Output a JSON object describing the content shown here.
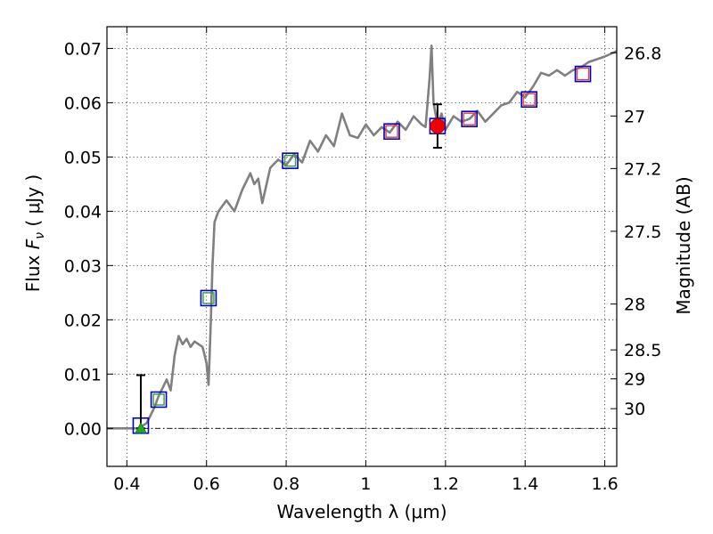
{
  "chart_data": {
    "type": "scatter",
    "xlabel": "Wavelength  λ (μm)",
    "ylabel_prefix": "Flux ",
    "ylabel_symbol": "F",
    "ylabel_subscript": "ν",
    "ylabel_suffix": " ( μJy )",
    "y2label": "Magnitude (AB)",
    "xlim": [
      0.35,
      1.63
    ],
    "ylim": [
      -0.007,
      0.074
    ],
    "x_ticks": [
      0.4,
      0.6,
      0.8,
      1.0,
      1.2,
      1.4,
      1.6
    ],
    "x_tick_labels": [
      "0.4",
      "0.6",
      "0.8",
      "1",
      "1.2",
      "1.4",
      "1.6"
    ],
    "y_ticks": [
      0.0,
      0.01,
      0.02,
      0.03,
      0.04,
      0.05,
      0.06,
      0.07
    ],
    "y_tick_labels": [
      "0.00",
      "0.01",
      "0.02",
      "0.03",
      "0.04",
      "0.05",
      "0.06",
      "0.07"
    ],
    "mag_ticks": [
      26.8,
      27,
      27.2,
      27.5,
      28,
      28.5,
      29,
      30
    ],
    "mag_tick_labels": [
      "26.8",
      "27",
      "27.2",
      "27.5",
      "28",
      "28.5",
      "29",
      "30"
    ],
    "grid": true,
    "colors": {
      "model": "#808080",
      "filter_box": "#0000cc",
      "model_box_red": "#e04040",
      "model_box_green": "#30a030",
      "detection": "#ee0000",
      "upper_limit": "#22aa22",
      "zero_line": "#000000"
    },
    "series": [
      {
        "name": "Model SED",
        "style": "line",
        "x": [
          0.35,
          0.4,
          0.43,
          0.45,
          0.46,
          0.47,
          0.48,
          0.49,
          0.5,
          0.51,
          0.52,
          0.53,
          0.54,
          0.55,
          0.56,
          0.57,
          0.58,
          0.59,
          0.6,
          0.605,
          0.61,
          0.615,
          0.62,
          0.63,
          0.65,
          0.67,
          0.69,
          0.71,
          0.72,
          0.73,
          0.74,
          0.76,
          0.78,
          0.8,
          0.82,
          0.84,
          0.86,
          0.88,
          0.9,
          0.92,
          0.94,
          0.96,
          0.98,
          1.0,
          1.02,
          1.04,
          1.06,
          1.08,
          1.1,
          1.12,
          1.14,
          1.15,
          1.16,
          1.165,
          1.17,
          1.18,
          1.19,
          1.2,
          1.22,
          1.24,
          1.26,
          1.28,
          1.3,
          1.32,
          1.34,
          1.36,
          1.38,
          1.4,
          1.42,
          1.44,
          1.46,
          1.48,
          1.5,
          1.52,
          1.54,
          1.56,
          1.58,
          1.6,
          1.63
        ],
        "y": [
          0.0,
          0.0,
          0.0,
          0.001,
          0.0025,
          0.004,
          0.006,
          0.0075,
          0.009,
          0.007,
          0.0135,
          0.017,
          0.0155,
          0.0165,
          0.015,
          0.016,
          0.0155,
          0.015,
          0.012,
          0.008,
          0.018,
          0.03,
          0.038,
          0.04,
          0.042,
          0.04,
          0.044,
          0.047,
          0.045,
          0.046,
          0.0415,
          0.048,
          0.0495,
          0.0485,
          0.0505,
          0.049,
          0.053,
          0.051,
          0.054,
          0.052,
          0.058,
          0.054,
          0.0535,
          0.056,
          0.054,
          0.0555,
          0.0545,
          0.0565,
          0.055,
          0.0575,
          0.056,
          0.0555,
          0.0645,
          0.0705,
          0.06,
          0.056,
          0.058,
          0.055,
          0.0575,
          0.0565,
          0.057,
          0.0585,
          0.0565,
          0.058,
          0.0595,
          0.06,
          0.062,
          0.061,
          0.063,
          0.0655,
          0.065,
          0.066,
          0.065,
          0.066,
          0.0665,
          0.0675,
          0.068,
          0.0685,
          0.0695
        ]
      },
      {
        "name": "Filter boxes",
        "style": "open-square",
        "x": [
          0.435,
          0.48,
          0.605,
          0.81,
          1.065,
          1.18,
          1.26,
          1.41,
          1.545
        ],
        "y": [
          0.0005,
          0.0053,
          0.024,
          0.0493,
          0.0547,
          0.0557,
          0.057,
          0.0606,
          0.0653
        ],
        "inner": [
          "none",
          "green",
          "green",
          "green",
          "red",
          "none",
          "red",
          "red",
          "red"
        ]
      },
      {
        "name": "Detection",
        "style": "filled-circle",
        "x": [
          1.18
        ],
        "y": [
          0.0557
        ],
        "yerr_low": [
          0.0517
        ],
        "yerr_high": [
          0.0597
        ]
      },
      {
        "name": "Upper limit",
        "style": "triangle",
        "x": [
          0.435
        ],
        "y": [
          0.0
        ],
        "yerr_high": [
          0.0098
        ]
      }
    ]
  }
}
